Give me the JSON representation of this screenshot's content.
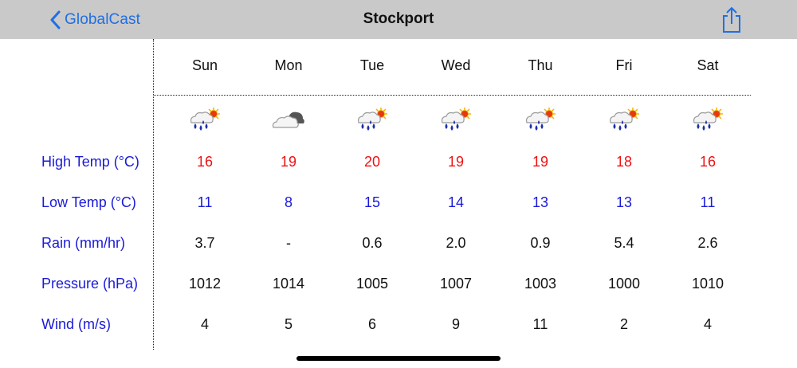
{
  "nav": {
    "back_label": "GlobalCast",
    "title": "Stockport",
    "back_icon": "chevron-left-icon",
    "share_icon": "share-icon",
    "accent_color": "#1f6fe5"
  },
  "days": [
    {
      "name": "Sun",
      "icon": "rain-sun-icon",
      "high": "16",
      "low": "11",
      "rain": "3.7",
      "pressure": "1012",
      "wind": "4"
    },
    {
      "name": "Mon",
      "icon": "cloud-icon",
      "high": "19",
      "low": "8",
      "rain": "-",
      "pressure": "1014",
      "wind": "5"
    },
    {
      "name": "Tue",
      "icon": "rain-sun-icon",
      "high": "20",
      "low": "15",
      "rain": "0.6",
      "pressure": "1005",
      "wind": "6"
    },
    {
      "name": "Wed",
      "icon": "rain-sun-icon",
      "high": "19",
      "low": "14",
      "rain": "2.0",
      "pressure": "1007",
      "wind": "9"
    },
    {
      "name": "Thu",
      "icon": "rain-sun-icon",
      "high": "19",
      "low": "13",
      "rain": "0.9",
      "pressure": "1003",
      "wind": "11"
    },
    {
      "name": "Fri",
      "icon": "rain-sun-icon",
      "high": "18",
      "low": "13",
      "rain": "5.4",
      "pressure": "1000",
      "wind": "2"
    },
    {
      "name": "Sat",
      "icon": "rain-sun-icon",
      "high": "16",
      "low": "11",
      "rain": "2.6",
      "pressure": "1010",
      "wind": "4"
    }
  ],
  "rows": {
    "high_label": "High Temp (°C)",
    "low_label": "Low Temp (°C)",
    "rain_label": "Rain (mm/hr)",
    "pressure_label": "Pressure (hPa)",
    "wind_label": "Wind (m/s)"
  },
  "colors": {
    "high_temp": "#ee1111",
    "low_temp": "#1a1ad8",
    "label": "#1a1ad8"
  }
}
